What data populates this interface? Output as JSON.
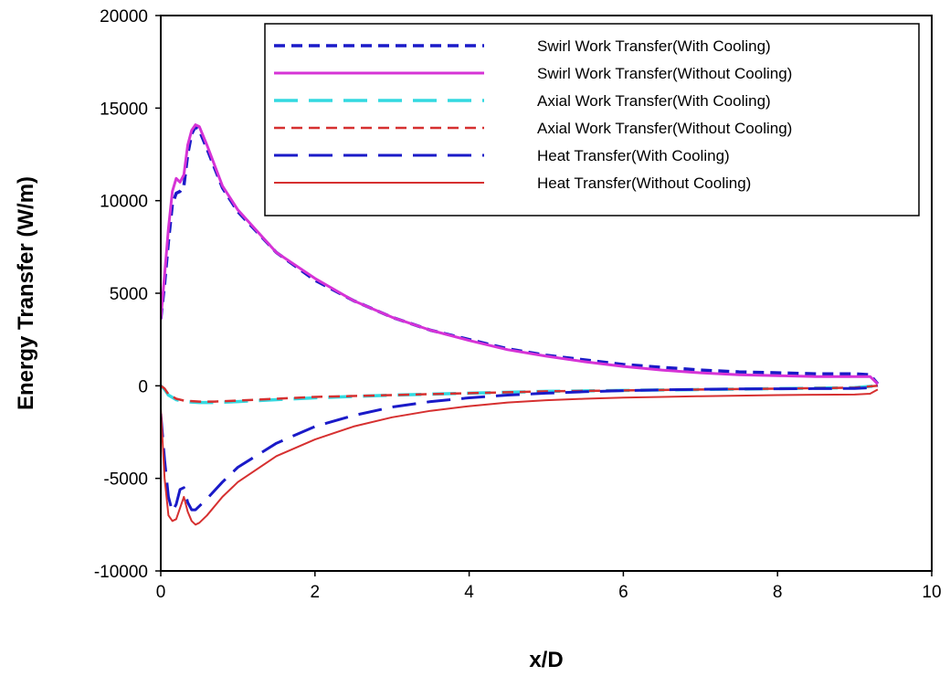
{
  "chart_data": {
    "type": "line",
    "title": "",
    "xlabel": "x/D",
    "ylabel": "Energy Transfer (W/m)",
    "xlim": [
      0,
      10
    ],
    "ylim": [
      -10000,
      20000
    ],
    "xticks": [
      0,
      2,
      4,
      6,
      8,
      10
    ],
    "yticks": [
      -10000,
      -5000,
      0,
      5000,
      10000,
      15000,
      20000
    ],
    "xtick_labels": [
      "0",
      "2",
      "4",
      "6",
      "8",
      "10"
    ],
    "ytick_labels": [
      "-10000",
      "-5000",
      "0",
      "5000",
      "10000",
      "15000",
      "20000"
    ],
    "grid": false,
    "legend_position": "top-right",
    "series": [
      {
        "name": "Swirl Work Transfer(With Cooling)",
        "color": "#1a1ac8",
        "dash": "dash",
        "width": 3.5,
        "x": [
          0.0,
          0.05,
          0.1,
          0.15,
          0.2,
          0.25,
          0.3,
          0.35,
          0.4,
          0.45,
          0.5,
          0.6,
          0.8,
          1.0,
          1.5,
          2.0,
          2.5,
          3.0,
          3.5,
          4.0,
          4.5,
          5.0,
          5.5,
          6.0,
          6.5,
          7.0,
          7.5,
          8.0,
          8.5,
          9.0,
          9.2,
          9.3
        ],
        "y": [
          3600,
          5500,
          7800,
          9800,
          10400,
          10500,
          10800,
          12500,
          13600,
          14000,
          13800,
          12800,
          10700,
          9400,
          7200,
          5700,
          4600,
          3700,
          3000,
          2500,
          2000,
          1650,
          1400,
          1150,
          1000,
          850,
          750,
          700,
          650,
          650,
          600,
          100
        ]
      },
      {
        "name": "Swirl Work Transfer(Without Cooling)",
        "color": "#d633d6",
        "dash": "solid",
        "width": 3,
        "x": [
          0.0,
          0.05,
          0.1,
          0.15,
          0.2,
          0.25,
          0.3,
          0.35,
          0.4,
          0.45,
          0.5,
          0.6,
          0.8,
          1.0,
          1.5,
          2.0,
          2.5,
          3.0,
          3.5,
          4.0,
          4.5,
          5.0,
          5.5,
          6.0,
          6.5,
          7.0,
          7.5,
          8.0,
          8.5,
          9.0,
          9.2,
          9.3
        ],
        "y": [
          3600,
          6000,
          8500,
          10500,
          11200,
          11000,
          11400,
          13000,
          13800,
          14100,
          14000,
          13000,
          10800,
          9500,
          7200,
          5800,
          4600,
          3700,
          3000,
          2450,
          1950,
          1600,
          1300,
          1050,
          850,
          700,
          600,
          550,
          500,
          500,
          500,
          100
        ]
      },
      {
        "name": "Axial Work Transfer(With Cooling)",
        "color": "#33d9e0",
        "dash": "longdash",
        "width": 3.5,
        "x": [
          0.0,
          0.05,
          0.1,
          0.2,
          0.3,
          0.5,
          0.7,
          1.0,
          1.5,
          2.0,
          3.0,
          4.0,
          5.0,
          6.0,
          7.0,
          8.0,
          9.0,
          9.3
        ],
        "y": [
          0,
          -200,
          -500,
          -750,
          -850,
          -900,
          -900,
          -850,
          -750,
          -650,
          -500,
          -400,
          -300,
          -250,
          -200,
          -150,
          -100,
          0
        ]
      },
      {
        "name": "Axial Work Transfer(Without Cooling)",
        "color": "#d63030",
        "dash": "dash",
        "width": 2.5,
        "x": [
          0.0,
          0.05,
          0.1,
          0.2,
          0.3,
          0.5,
          0.7,
          1.0,
          1.5,
          2.0,
          3.0,
          4.0,
          5.0,
          6.0,
          7.0,
          8.0,
          9.0,
          9.3
        ],
        "y": [
          0,
          -150,
          -450,
          -700,
          -800,
          -850,
          -850,
          -800,
          -700,
          -600,
          -500,
          -400,
          -300,
          -250,
          -200,
          -150,
          -100,
          0
        ]
      },
      {
        "name": "Heat Transfer(With Cooling)",
        "color": "#1a1ac8",
        "dash": "longdash",
        "width": 3,
        "x": [
          0.0,
          0.05,
          0.1,
          0.15,
          0.2,
          0.25,
          0.3,
          0.35,
          0.4,
          0.45,
          0.5,
          0.6,
          0.8,
          1.0,
          1.5,
          2.0,
          2.5,
          3.0,
          3.5,
          4.0,
          4.5,
          5.0,
          5.5,
          6.0,
          6.5,
          7.0,
          7.5,
          8.0,
          8.5,
          9.0,
          9.2,
          9.3
        ],
        "y": [
          -1500,
          -4000,
          -6000,
          -6800,
          -6400,
          -5600,
          -5500,
          -6300,
          -6700,
          -6700,
          -6500,
          -6100,
          -5200,
          -4400,
          -3100,
          -2200,
          -1600,
          -1150,
          -850,
          -650,
          -500,
          -400,
          -320,
          -260,
          -220,
          -190,
          -170,
          -160,
          -150,
          -140,
          -100,
          0
        ]
      },
      {
        "name": "Heat Transfer(Without Cooling)",
        "color": "#d63030",
        "dash": "solid",
        "width": 2,
        "x": [
          0.0,
          0.05,
          0.1,
          0.15,
          0.2,
          0.25,
          0.3,
          0.35,
          0.4,
          0.45,
          0.5,
          0.6,
          0.8,
          1.0,
          1.5,
          2.0,
          2.5,
          3.0,
          3.5,
          4.0,
          4.5,
          5.0,
          5.5,
          6.0,
          6.5,
          7.0,
          7.5,
          8.0,
          8.5,
          9.0,
          9.2,
          9.3
        ],
        "y": [
          -1200,
          -5000,
          -7000,
          -7300,
          -7200,
          -6600,
          -6000,
          -6800,
          -7300,
          -7500,
          -7400,
          -7000,
          -6000,
          -5200,
          -3800,
          -2900,
          -2200,
          -1700,
          -1350,
          -1100,
          -900,
          -780,
          -700,
          -640,
          -600,
          -560,
          -530,
          -500,
          -480,
          -470,
          -430,
          -200
        ]
      }
    ]
  }
}
